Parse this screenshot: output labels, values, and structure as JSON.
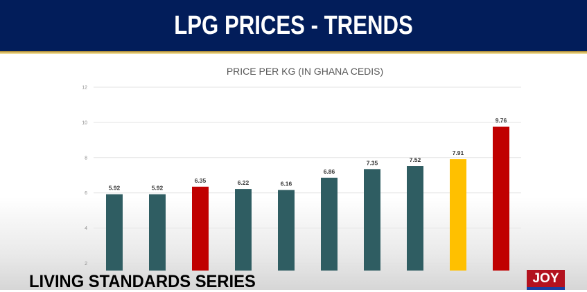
{
  "header": {
    "title": "LPG PRICES - TRENDS"
  },
  "footer": {
    "series_title": "LIVING STANDARDS SERIES",
    "logo_text": "JOY NEWS"
  },
  "chart_data": {
    "type": "bar",
    "title": "PRICE PER KG (IN GHANA CEDIS)",
    "xlabel": "",
    "ylabel": "",
    "categories": [
      "",
      "",
      "",
      "",
      "",
      "",
      "",
      "",
      "",
      ""
    ],
    "values": [
      5.92,
      5.92,
      6.35,
      6.22,
      6.16,
      6.86,
      7.35,
      7.52,
      7.91,
      9.76
    ],
    "data_labels": [
      "5.92",
      "5.92",
      "6.35",
      "6.22",
      "6.16",
      "6.86",
      "7.35",
      "7.52",
      "7.91",
      "9.76"
    ],
    "bar_colors": [
      "#2f5d62",
      "#2f5d62",
      "#c00000",
      "#2f5d62",
      "#2f5d62",
      "#2f5d62",
      "#2f5d62",
      "#2f5d62",
      "#ffc000",
      "#c00000"
    ],
    "yticks": [
      "2",
      "4",
      "6",
      "8",
      "10",
      "12"
    ],
    "ylim": [
      0,
      12
    ],
    "grid": true,
    "legend": "none"
  }
}
